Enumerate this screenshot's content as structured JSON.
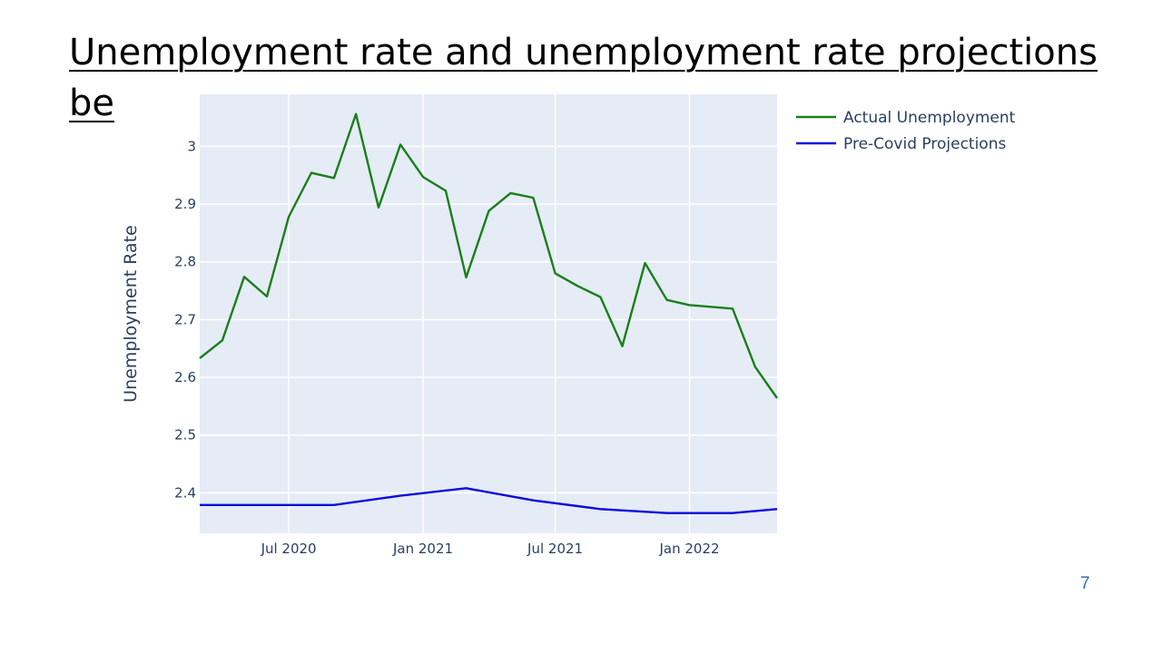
{
  "slide": {
    "title_line1": "Unemployment rate and unemployment rate projections",
    "title_line2": "be",
    "page_number": "7"
  },
  "colors": {
    "plot_bg": "#e5ecf6",
    "grid": "#ffffff",
    "actual": "#1a7f1a",
    "projection": "#0b0bdd",
    "axis_text": "#2a3f5f"
  },
  "chart_data": {
    "type": "line",
    "title": "",
    "xlabel": "",
    "ylabel": "Unemployment Rate",
    "ylim": [
      2.33,
      3.09
    ],
    "xlim": [
      "2020-03-01",
      "2022-05-01"
    ],
    "grid": true,
    "legend_position": "top-right-outside",
    "y_ticks": [
      2.4,
      2.5,
      2.6,
      2.7,
      2.8,
      2.9,
      3
    ],
    "y_tick_labels": [
      "2.4",
      "2.5",
      "2.6",
      "2.7",
      "2.8",
      "2.9",
      "3"
    ],
    "x_ticks": [
      "2020-07-01",
      "2021-01-01",
      "2021-07-01",
      "2022-01-01"
    ],
    "x_tick_labels": [
      "Jul 2020",
      "Jan 2021",
      "Jul 2021",
      "Jan 2022"
    ],
    "series": [
      {
        "name": "Actual Unemployment",
        "color": "#1a7f1a",
        "x": [
          "2020-03-01",
          "2020-04-01",
          "2020-05-01",
          "2020-06-01",
          "2020-07-01",
          "2020-08-01",
          "2020-09-01",
          "2020-10-01",
          "2020-11-01",
          "2020-12-01",
          "2021-01-01",
          "2021-02-01",
          "2021-03-01",
          "2021-04-01",
          "2021-05-01",
          "2021-06-01",
          "2021-07-01",
          "2021-08-01",
          "2021-09-01",
          "2021-10-01",
          "2021-11-01",
          "2021-12-01",
          "2022-01-01",
          "2022-02-01",
          "2022-03-01",
          "2022-04-01",
          "2022-05-01"
        ],
        "y": [
          2.633,
          2.664,
          2.774,
          2.74,
          2.878,
          2.954,
          2.945,
          3.056,
          2.894,
          3.003,
          2.947,
          2.923,
          2.773,
          2.888,
          2.919,
          2.911,
          2.78,
          2.758,
          2.739,
          2.654,
          2.798,
          2.734,
          2.725,
          2.722,
          2.719,
          2.618,
          2.564
        ]
      },
      {
        "name": "Pre-Covid Projections",
        "color": "#0b0bdd",
        "x": [
          "2020-03-01",
          "2020-06-01",
          "2020-09-01",
          "2020-12-01",
          "2021-03-01",
          "2021-06-01",
          "2021-09-01",
          "2021-12-01",
          "2022-03-01",
          "2022-05-01"
        ],
        "y": [
          2.379,
          2.379,
          2.379,
          2.395,
          2.408,
          2.387,
          2.372,
          2.365,
          2.365,
          2.372
        ]
      }
    ]
  }
}
